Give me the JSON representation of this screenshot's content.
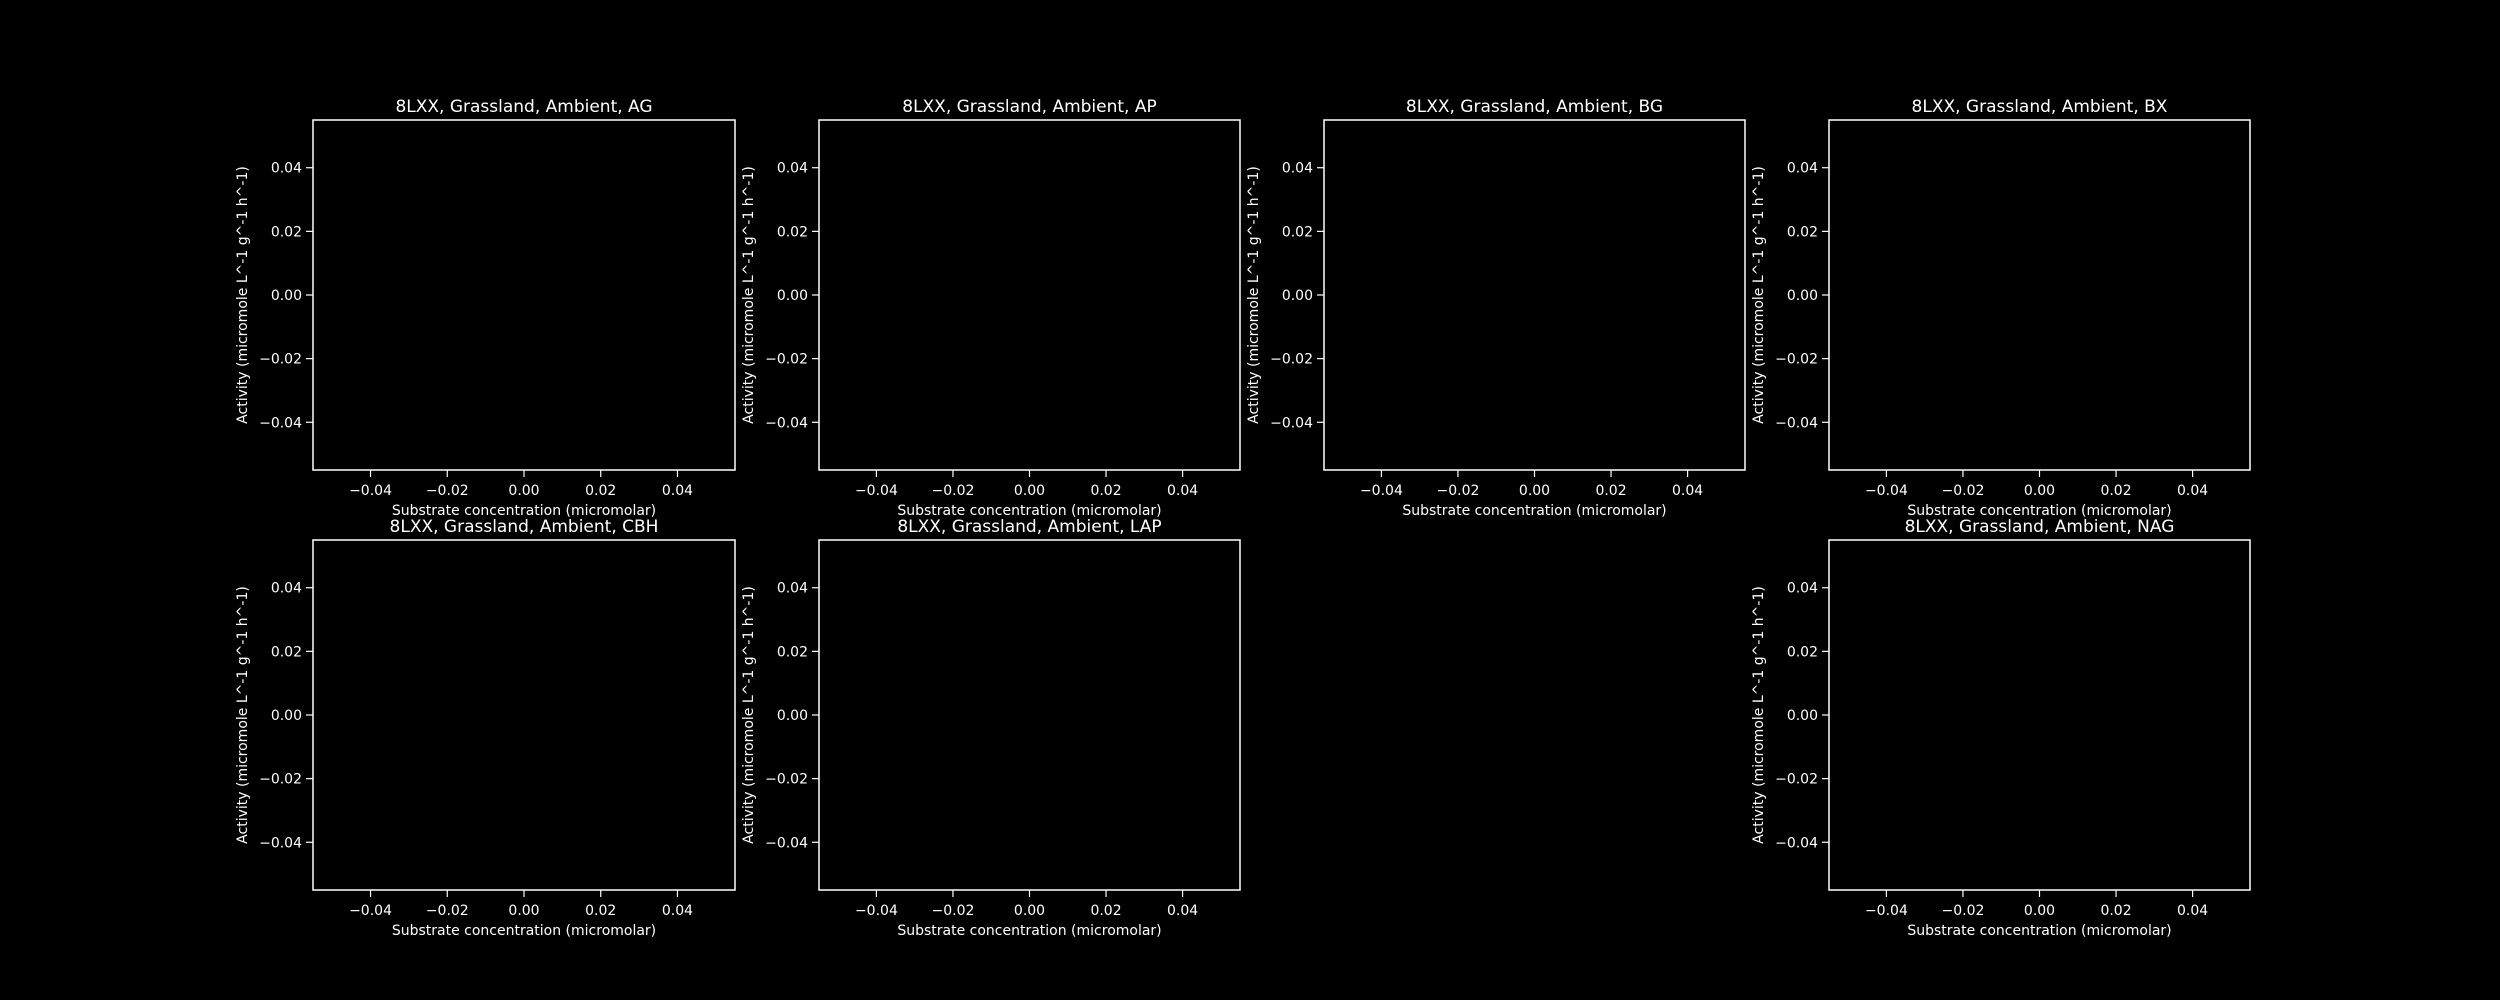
{
  "colors": {
    "background": "#000000",
    "foreground": "#ffffff"
  },
  "chart_data": [
    {
      "type": "scatter",
      "title": "8LXX, Grassland, Ambient, AG",
      "xlabel": "Substrate concentration (micromolar)",
      "ylabel": "Activity (micromole L^-1 g^-1 h^-1)",
      "xlim": [
        -0.055,
        0.055
      ],
      "ylim": [
        -0.055,
        0.055
      ],
      "xticks": [
        -0.04,
        -0.02,
        0.0,
        0.02,
        0.04
      ],
      "xtick_labels": [
        "−0.04",
        "−0.02",
        "0.00",
        "0.02",
        "0.04"
      ],
      "yticks": [
        -0.04,
        -0.02,
        0.0,
        0.02,
        0.04
      ],
      "ytick_labels": [
        "−0.04",
        "−0.02",
        "0.00",
        "0.02",
        "0.04"
      ],
      "grid": false,
      "series": []
    },
    {
      "type": "scatter",
      "title": "8LXX, Grassland, Ambient, AP",
      "xlabel": "Substrate concentration (micromolar)",
      "ylabel": "Activity (micromole L^-1 g^-1 h^-1)",
      "xlim": [
        -0.055,
        0.055
      ],
      "ylim": [
        -0.055,
        0.055
      ],
      "xticks": [
        -0.04,
        -0.02,
        0.0,
        0.02,
        0.04
      ],
      "xtick_labels": [
        "−0.04",
        "−0.02",
        "0.00",
        "0.02",
        "0.04"
      ],
      "yticks": [
        -0.04,
        -0.02,
        0.0,
        0.02,
        0.04
      ],
      "ytick_labels": [
        "−0.04",
        "−0.02",
        "0.00",
        "0.02",
        "0.04"
      ],
      "grid": false,
      "series": []
    },
    {
      "type": "scatter",
      "title": "8LXX, Grassland, Ambient, BG",
      "xlabel": "Substrate concentration (micromolar)",
      "ylabel": "Activity (micromole L^-1 g^-1 h^-1)",
      "xlim": [
        -0.055,
        0.055
      ],
      "ylim": [
        -0.055,
        0.055
      ],
      "xticks": [
        -0.04,
        -0.02,
        0.0,
        0.02,
        0.04
      ],
      "xtick_labels": [
        "−0.04",
        "−0.02",
        "0.00",
        "0.02",
        "0.04"
      ],
      "yticks": [
        -0.04,
        -0.02,
        0.0,
        0.02,
        0.04
      ],
      "ytick_labels": [
        "−0.04",
        "−0.02",
        "0.00",
        "0.02",
        "0.04"
      ],
      "grid": false,
      "series": []
    },
    {
      "type": "scatter",
      "title": "8LXX, Grassland, Ambient, BX",
      "xlabel": "Substrate concentration (micromolar)",
      "ylabel": "Activity (micromole L^-1 g^-1 h^-1)",
      "xlim": [
        -0.055,
        0.055
      ],
      "ylim": [
        -0.055,
        0.055
      ],
      "xticks": [
        -0.04,
        -0.02,
        0.0,
        0.02,
        0.04
      ],
      "xtick_labels": [
        "−0.04",
        "−0.02",
        "0.00",
        "0.02",
        "0.04"
      ],
      "yticks": [
        -0.04,
        -0.02,
        0.0,
        0.02,
        0.04
      ],
      "ytick_labels": [
        "−0.04",
        "−0.02",
        "0.00",
        "0.02",
        "0.04"
      ],
      "grid": false,
      "series": []
    },
    {
      "type": "scatter",
      "title": "8LXX, Grassland, Ambient, CBH",
      "xlabel": "Substrate concentration (micromolar)",
      "ylabel": "Activity (micromole L^-1 g^-1 h^-1)",
      "xlim": [
        -0.055,
        0.055
      ],
      "ylim": [
        -0.055,
        0.055
      ],
      "xticks": [
        -0.04,
        -0.02,
        0.0,
        0.02,
        0.04
      ],
      "xtick_labels": [
        "−0.04",
        "−0.02",
        "0.00",
        "0.02",
        "0.04"
      ],
      "yticks": [
        -0.04,
        -0.02,
        0.0,
        0.02,
        0.04
      ],
      "ytick_labels": [
        "−0.04",
        "−0.02",
        "0.00",
        "0.02",
        "0.04"
      ],
      "grid": false,
      "series": []
    },
    {
      "type": "scatter",
      "title": "8LXX, Grassland, Ambient, LAP",
      "xlabel": "Substrate concentration (micromolar)",
      "ylabel": "Activity (micromole L^-1 g^-1 h^-1)",
      "xlim": [
        -0.055,
        0.055
      ],
      "ylim": [
        -0.055,
        0.055
      ],
      "xticks": [
        -0.04,
        -0.02,
        0.0,
        0.02,
        0.04
      ],
      "xtick_labels": [
        "−0.04",
        "−0.02",
        "0.00",
        "0.02",
        "0.04"
      ],
      "yticks": [
        -0.04,
        -0.02,
        0.0,
        0.02,
        0.04
      ],
      "ytick_labels": [
        "−0.04",
        "−0.02",
        "0.00",
        "0.02",
        "0.04"
      ],
      "grid": false,
      "series": []
    },
    {
      "type": "scatter",
      "title": "8LXX, Grassland, Ambient, NAG",
      "xlabel": "Substrate concentration (micromolar)",
      "ylabel": "Activity (micromole L^-1 g^-1 h^-1)",
      "xlim": [
        -0.055,
        0.055
      ],
      "ylim": [
        -0.055,
        0.055
      ],
      "xticks": [
        -0.04,
        -0.02,
        0.0,
        0.02,
        0.04
      ],
      "xtick_labels": [
        "−0.04",
        "−0.02",
        "0.00",
        "0.02",
        "0.04"
      ],
      "yticks": [
        -0.04,
        -0.02,
        0.0,
        0.02,
        0.04
      ],
      "ytick_labels": [
        "−0.04",
        "−0.02",
        "0.00",
        "0.02",
        "0.04"
      ],
      "grid": false,
      "series": []
    }
  ]
}
